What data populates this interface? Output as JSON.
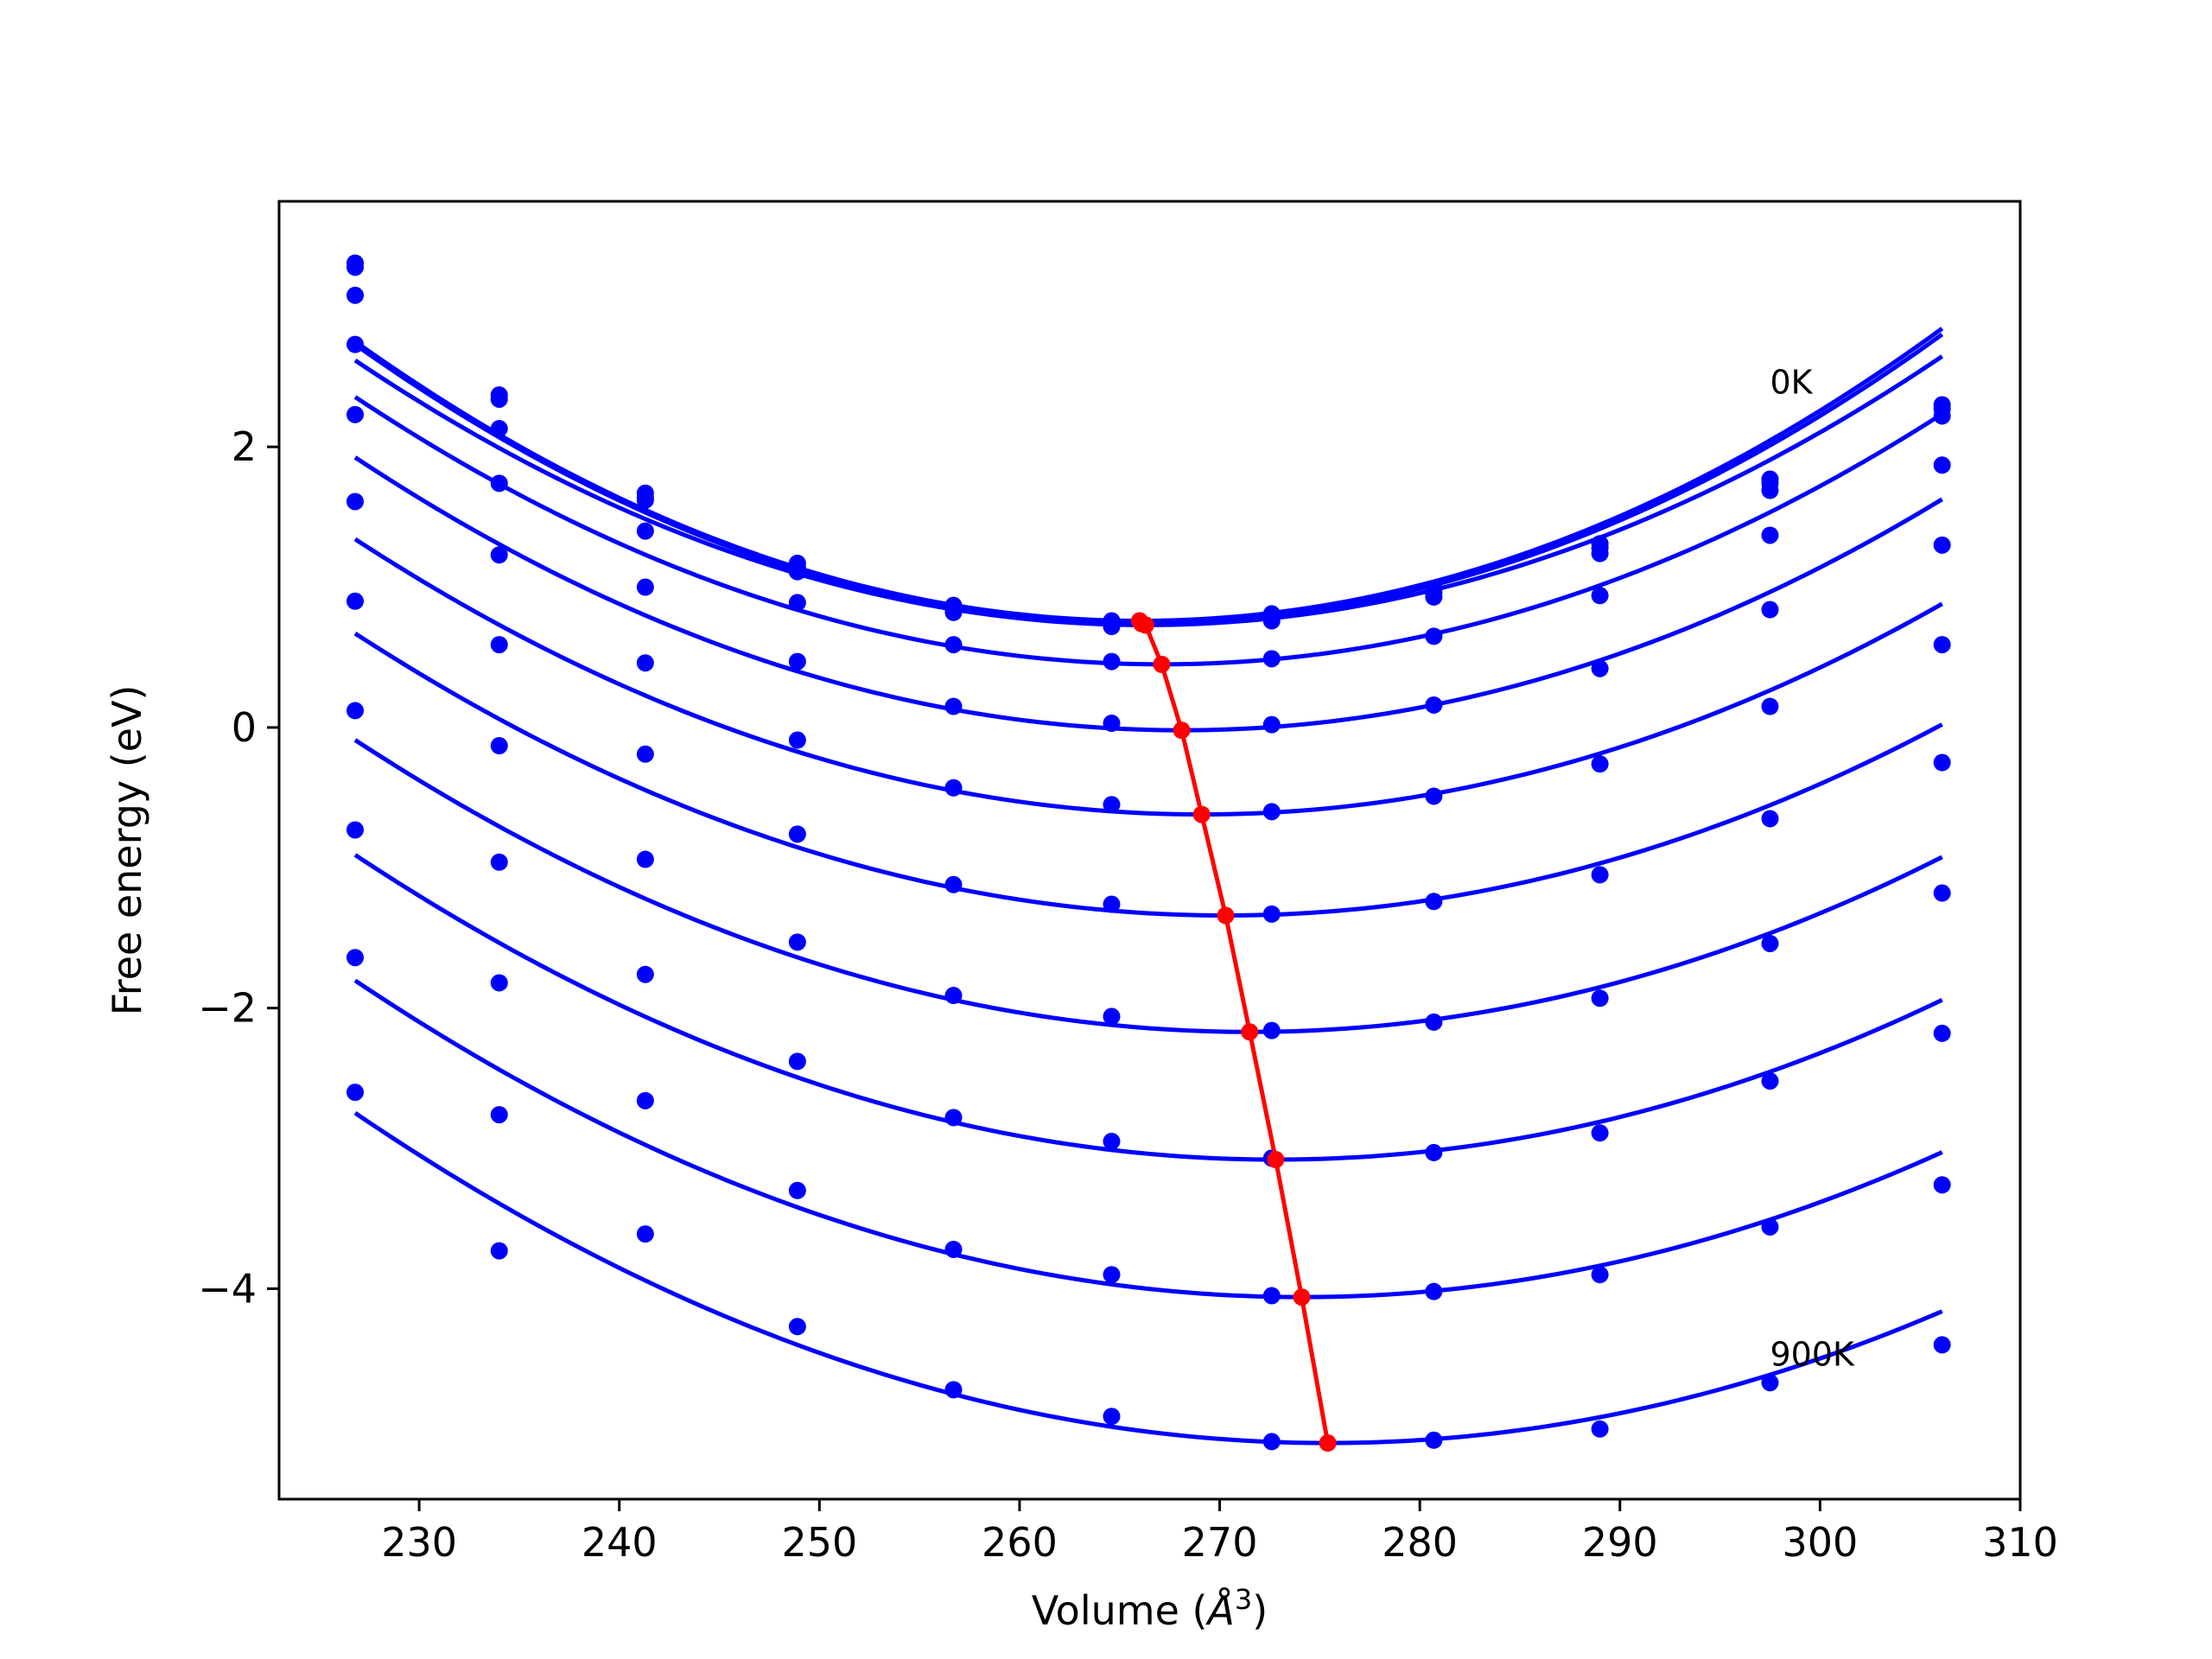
{
  "chart_data": {
    "type": "line",
    "title": "",
    "xlabel": "Volume (",
    "xlabel_unit": "Å",
    "xlabel_exp": "3",
    "xlabel_close": ")",
    "ylabel": "Free energy (eV)",
    "xlim": [
      223,
      310
    ],
    "ylim": [
      -5.5,
      3.75
    ],
    "xticks": [
      230,
      240,
      250,
      260,
      270,
      280,
      290,
      300,
      310
    ],
    "yticks": [
      -4,
      -2,
      0,
      2
    ],
    "ytick_labels": [
      "−4",
      "−2",
      "0",
      "2"
    ],
    "xtick_labels": [
      "230",
      "240",
      "250",
      "260",
      "270",
      "280",
      "290",
      "300",
      "310"
    ],
    "grid": false,
    "legend": "none",
    "curve_color": "#0000ff",
    "minima_color": "#ff0000",
    "annotations": [
      {
        "text": "0K",
        "x": 297.5,
        "y": 2.38
      },
      {
        "text": "900K",
        "x": 297.5,
        "y": -4.55
      }
    ],
    "x": [
      226.8,
      234.0,
      241.3,
      248.9,
      256.7,
      264.6,
      272.6,
      280.7,
      289.0,
      297.5,
      306.1
    ],
    "series": [
      {
        "values": [
          3.31,
          2.37,
          1.67,
          1.17,
          0.87,
          0.76,
          0.81,
          0.99,
          1.31,
          1.77,
          2.3
        ],
        "min_x": 266.0,
        "min_y": 0.76
      },
      {
        "values": [
          3.28,
          2.34,
          1.64,
          1.14,
          0.84,
          0.74,
          0.78,
          0.96,
          1.28,
          1.74,
          2.27
        ],
        "min_x": 266.1,
        "min_y": 0.74
      },
      {
        "values": [
          3.08,
          2.13,
          1.62,
          1.11,
          0.82,
          0.72,
          0.76,
          0.93,
          1.24,
          1.69,
          2.22
        ],
        "min_x": 266.3,
        "min_y": 0.73
      },
      {
        "values": [
          2.73,
          1.74,
          1.4,
          0.89,
          0.59,
          0.47,
          0.49,
          0.65,
          0.94,
          1.37,
          1.87
        ],
        "min_x": 267.1,
        "min_y": 0.45
      },
      {
        "values": [
          2.23,
          1.23,
          1.0,
          0.47,
          0.15,
          0.03,
          0.02,
          0.16,
          0.42,
          0.84,
          1.3
        ],
        "min_x": 268.1,
        "min_y": -0.02
      },
      {
        "values": [
          1.61,
          0.59,
          0.46,
          -0.09,
          -0.43,
          -0.55,
          -0.6,
          -0.49,
          -0.26,
          0.15,
          0.59
        ],
        "min_x": 269.1,
        "min_y": -0.62
      },
      {
        "values": [
          0.9,
          -0.13,
          -0.19,
          -0.76,
          -1.12,
          -1.26,
          -1.33,
          -1.24,
          -1.05,
          -0.65,
          -0.25
        ],
        "min_x": 270.3,
        "min_y": -1.34
      },
      {
        "values": [
          0.12,
          -0.96,
          -0.94,
          -1.53,
          -1.91,
          -2.06,
          -2.16,
          -2.1,
          -1.93,
          -1.54,
          -1.18
        ],
        "min_x": 271.5,
        "min_y": -2.17
      },
      {
        "values": [
          -0.73,
          -1.82,
          -1.76,
          -2.38,
          -2.78,
          -2.95,
          -3.07,
          -3.03,
          -2.89,
          -2.52,
          -2.18
        ],
        "min_x": 272.8,
        "min_y": -3.08
      },
      {
        "values": [
          -1.64,
          -2.76,
          -2.66,
          -3.3,
          -3.72,
          -3.9,
          -4.05,
          -4.02,
          -3.9,
          -3.56,
          -3.26
        ],
        "min_x": 274.1,
        "min_y": -4.06
      },
      {
        "values": [
          -2.6,
          -3.73,
          -3.61,
          -4.27,
          -4.72,
          -4.91,
          -5.09,
          -5.08,
          -5.0,
          -4.67,
          -4.4
        ],
        "min_x": 275.4,
        "min_y": -5.1
      }
    ]
  }
}
